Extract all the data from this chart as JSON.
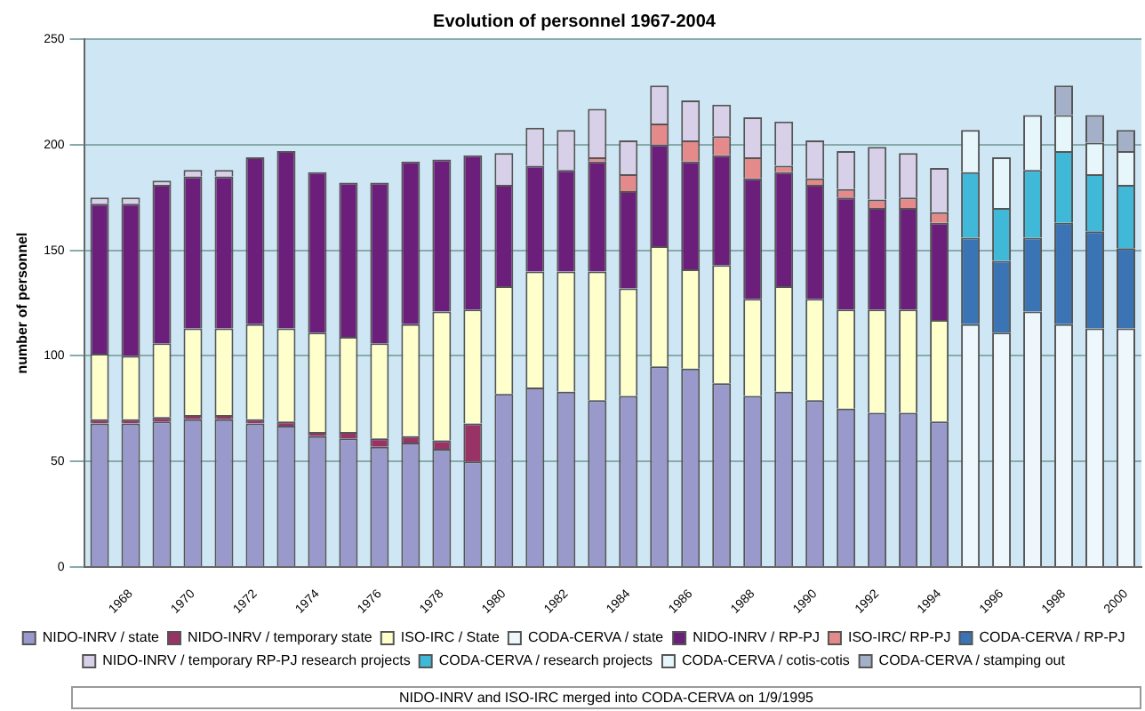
{
  "chart_data": {
    "type": "bar",
    "stacked": true,
    "title": "Evolution of personnel 1967-2004",
    "ylabel": "number of personnel",
    "categories": [
      null,
      "1968",
      null,
      "1970",
      null,
      "1972",
      null,
      "1974",
      null,
      "1976",
      null,
      "1978",
      null,
      "1980",
      null,
      "1982",
      null,
      "1984",
      null,
      "1986",
      null,
      "1988",
      null,
      "1990",
      null,
      "1992",
      null,
      "1994",
      null,
      "1996",
      null,
      "1998",
      null,
      "2000"
    ],
    "series": [
      {
        "name": "NIDO-INRV / state",
        "color": "#9999cc",
        "values": [
          68,
          68,
          69,
          70,
          70,
          68,
          67,
          62,
          61,
          57,
          59,
          56,
          50,
          82,
          85,
          83,
          79,
          81,
          95,
          94,
          87,
          81,
          83,
          79,
          75,
          73,
          73,
          69,
          null,
          null,
          null,
          null,
          null,
          null
        ]
      },
      {
        "name": "NIDO-INRV / temporary state",
        "color": "#993366",
        "values": [
          2,
          2,
          2,
          2,
          2,
          2,
          2,
          2,
          3,
          4,
          3,
          4,
          18,
          null,
          null,
          null,
          null,
          null,
          null,
          null,
          null,
          null,
          null,
          null,
          null,
          null,
          null,
          null,
          null,
          null,
          null,
          null,
          null,
          null
        ]
      },
      {
        "name": "ISO-IRC / State",
        "color": "#ffffcc",
        "values": [
          31,
          30,
          35,
          41,
          41,
          45,
          44,
          47,
          45,
          45,
          53,
          61,
          54,
          51,
          55,
          57,
          61,
          51,
          57,
          47,
          56,
          46,
          50,
          48,
          47,
          49,
          49,
          48,
          null,
          null,
          null,
          null,
          null,
          null
        ]
      },
      {
        "name": "CODA-CERVA / state",
        "color": "#eef8fc",
        "values": [
          null,
          null,
          null,
          null,
          null,
          null,
          null,
          null,
          null,
          null,
          null,
          null,
          null,
          null,
          null,
          null,
          null,
          null,
          null,
          null,
          null,
          null,
          null,
          null,
          null,
          null,
          null,
          null,
          115,
          111,
          121,
          115,
          113,
          113
        ]
      },
      {
        "name": "NIDO-INRV / RP-PJ",
        "color": "#6b1f7b",
        "values": [
          71,
          72,
          75,
          72,
          72,
          79,
          84,
          76,
          73,
          76,
          77,
          72,
          73,
          48,
          50,
          48,
          52,
          46,
          48,
          51,
          52,
          57,
          54,
          54,
          53,
          48,
          48,
          46,
          null,
          null,
          null,
          null,
          null,
          null
        ]
      },
      {
        "name": "ISO-IRC/ RP-PJ",
        "color": "#e58a8a",
        "values": [
          null,
          null,
          null,
          null,
          null,
          null,
          null,
          null,
          null,
          null,
          null,
          null,
          null,
          null,
          null,
          null,
          2,
          8,
          10,
          10,
          9,
          10,
          3,
          3,
          4,
          4,
          5,
          5,
          null,
          null,
          null,
          null,
          null,
          null
        ]
      },
      {
        "name": "CODA-CERVA / RP-PJ",
        "color": "#3a74b4",
        "values": [
          null,
          null,
          null,
          null,
          null,
          null,
          null,
          null,
          null,
          null,
          null,
          null,
          null,
          null,
          null,
          null,
          null,
          null,
          null,
          null,
          null,
          null,
          null,
          null,
          null,
          null,
          null,
          null,
          41,
          34,
          35,
          48,
          46,
          38
        ]
      },
      {
        "name": "NIDO-INRV / temporary RP-PJ research projects",
        "color": "#d8d0e8",
        "values": [
          3,
          3,
          2,
          3,
          3,
          null,
          null,
          null,
          null,
          null,
          null,
          null,
          null,
          15,
          18,
          19,
          23,
          16,
          18,
          19,
          15,
          19,
          21,
          18,
          18,
          25,
          21,
          21,
          null,
          null,
          null,
          null,
          null,
          null
        ]
      },
      {
        "name": "CODA-CERVA / research projects",
        "color": "#40b8d8",
        "values": [
          null,
          null,
          null,
          null,
          null,
          null,
          null,
          null,
          null,
          null,
          null,
          null,
          null,
          null,
          null,
          null,
          null,
          null,
          null,
          null,
          null,
          null,
          null,
          null,
          null,
          null,
          null,
          null,
          31,
          25,
          32,
          34,
          27,
          30
        ]
      },
      {
        "name": "CODA-CERVA / cotis-cotis",
        "color": "#e6f6fb",
        "values": [
          null,
          null,
          null,
          null,
          null,
          null,
          null,
          null,
          null,
          null,
          null,
          null,
          null,
          null,
          null,
          null,
          null,
          null,
          null,
          null,
          null,
          null,
          null,
          null,
          null,
          null,
          null,
          null,
          20,
          24,
          26,
          17,
          15,
          16
        ]
      },
      {
        "name": "CODA-CERVA / stamping out",
        "color": "#a4b0c8",
        "values": [
          null,
          null,
          null,
          null,
          null,
          null,
          null,
          null,
          null,
          null,
          null,
          null,
          null,
          null,
          null,
          null,
          null,
          null,
          null,
          null,
          null,
          null,
          null,
          null,
          null,
          null,
          null,
          null,
          null,
          null,
          null,
          14,
          13,
          10
        ]
      }
    ],
    "ylim": [
      0,
      250
    ],
    "yticks": [
      0,
      50,
      100,
      150,
      200,
      250
    ],
    "grid": "y",
    "legend": "bottom",
    "annotations": [
      "NIDO-INRV and ISO-IRC merged into CODA-CERVA on 1/9/1995"
    ]
  }
}
